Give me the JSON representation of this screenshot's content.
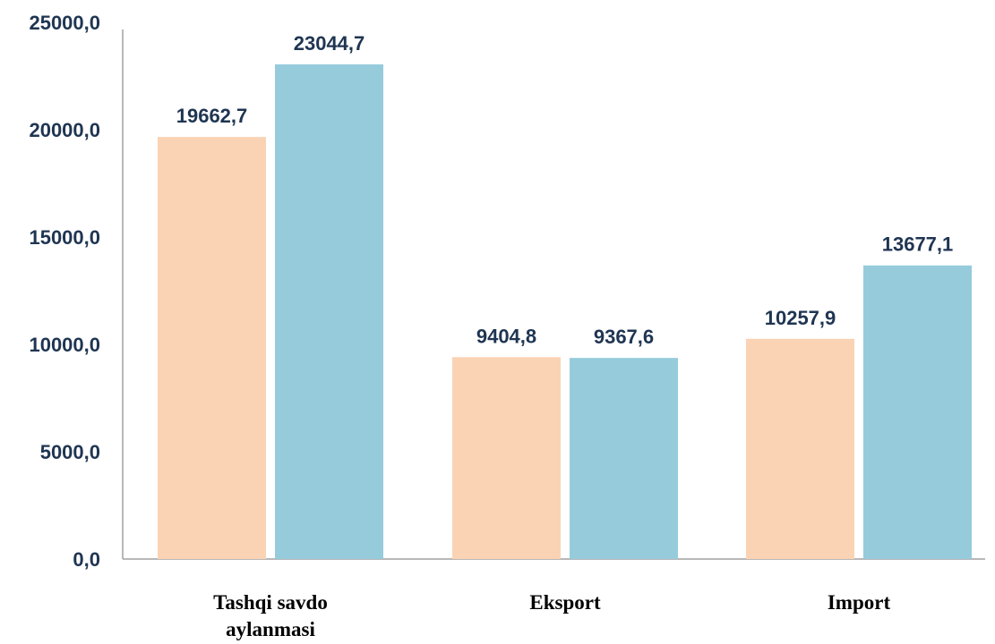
{
  "chart_data": {
    "type": "bar",
    "categories": [
      [
        "Tashqi savdo",
        "aylanmasi"
      ],
      [
        "Eksport"
      ],
      [
        "Import"
      ]
    ],
    "series": [
      {
        "values": [
          19662.7,
          9404.8,
          10257.9
        ],
        "labels": [
          "19662,7",
          "9404,8",
          "10257,9"
        ],
        "color": "#fad3b4"
      },
      {
        "values": [
          23044.7,
          9367.6,
          13677.1
        ],
        "labels": [
          "23044,7",
          "9367,6",
          "13677,1"
        ],
        "color": "#96cbdc"
      }
    ],
    "y_ticks": [
      {
        "value": 0,
        "label": "0,0"
      },
      {
        "value": 5000,
        "label": "5000,0"
      },
      {
        "value": 10000,
        "label": "10000,0"
      },
      {
        "value": 15000,
        "label": "15000,0"
      },
      {
        "value": 20000,
        "label": "20000,0"
      },
      {
        "value": 25000,
        "label": "25000,0"
      }
    ],
    "ylim": [
      0,
      25000
    ],
    "grid": false,
    "legend": "none"
  }
}
